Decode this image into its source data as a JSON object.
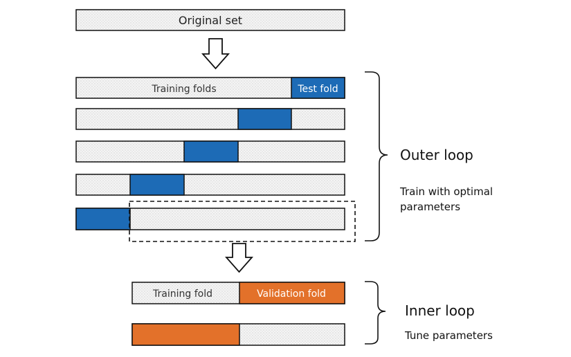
{
  "original_set": "Original set",
  "outer": {
    "label": "Outer loop",
    "subtitle_line1": "Train with optimal",
    "subtitle_line2": "parameters",
    "training_folds_label": "Training folds",
    "test_fold_label": "Test fold"
  },
  "inner": {
    "label": "Inner loop",
    "subtitle": "Tune parameters",
    "training_fold_label": "Training fold",
    "validation_fold_label": "Validation fold"
  },
  "colors": {
    "test_fold": "#1d6bb6",
    "validation_fold": "#e3712a",
    "fold_fill": "#f1f1f1",
    "border": "#111111"
  }
}
